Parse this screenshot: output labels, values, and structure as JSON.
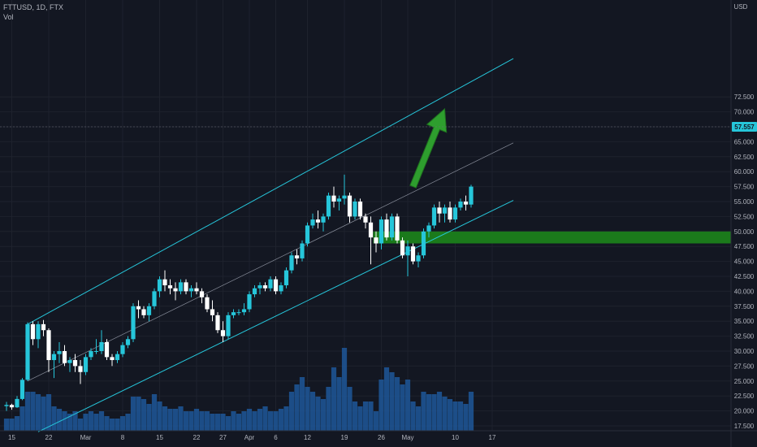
{
  "header": {
    "symbol_line": "FTTUSD, 1D, FTX",
    "volume_label": "Vol"
  },
  "price_axis": {
    "currency": "USD",
    "last_price_label": "57.557"
  },
  "colors": {
    "background": "#131722",
    "up": "#26c6da",
    "down": "#ffffff",
    "channel": "#26c6da",
    "midline": "#8a8f9c",
    "volume": "#1e5799",
    "zone": "#1b7f1b",
    "arrow": "#2e9e2e"
  },
  "chart_data": {
    "type": "candlestick",
    "title": "FTTUSD, 1D, FTX",
    "start_date": "2021-02-14",
    "y_ticks": [
      "17.500",
      "20.000",
      "22.500",
      "25.000",
      "27.500",
      "30.000",
      "32.500",
      "35.000",
      "37.500",
      "40.000",
      "42.500",
      "45.000",
      "47.500",
      "50.000",
      "52.500",
      "55.000",
      "57.500",
      "60.000",
      "62.500",
      "65.000",
      "67.500",
      "70.000",
      "72.500"
    ],
    "x_ticks": [
      {
        "date": "2021-02-15",
        "label": "15"
      },
      {
        "date": "2021-02-22",
        "label": "22"
      },
      {
        "date": "2021-03-01",
        "label": "Mar"
      },
      {
        "date": "2021-03-08",
        "label": "8"
      },
      {
        "date": "2021-03-15",
        "label": "15"
      },
      {
        "date": "2021-03-22",
        "label": "22"
      },
      {
        "date": "2021-03-27",
        "label": "27"
      },
      {
        "date": "2021-04-01",
        "label": "Apr"
      },
      {
        "date": "2021-04-06",
        "label": "6"
      },
      {
        "date": "2021-04-12",
        "label": "12"
      },
      {
        "date": "2021-04-19",
        "label": "19"
      },
      {
        "date": "2021-04-26",
        "label": "26"
      },
      {
        "date": "2021-05-01",
        "label": "May"
      },
      {
        "date": "2021-05-10",
        "label": "10"
      },
      {
        "date": "2021-05-17",
        "label": "17"
      }
    ],
    "ylim": [
      16.5,
      74
    ],
    "last_price": 57.557,
    "candles": [
      [
        20.8,
        21.5,
        20.0,
        21.0
      ],
      [
        21.0,
        21.2,
        20.2,
        20.6
      ],
      [
        20.6,
        22.5,
        20.5,
        22.0
      ],
      [
        22.0,
        25.5,
        21.8,
        25.2
      ],
      [
        25.2,
        34.8,
        25.0,
        34.5
      ],
      [
        34.5,
        35.0,
        31.0,
        32.0
      ],
      [
        32.0,
        35.0,
        30.5,
        34.5
      ],
      [
        34.5,
        35.2,
        32.5,
        33.5
      ],
      [
        33.5,
        33.8,
        26.5,
        28.5
      ],
      [
        28.5,
        30.0,
        25.5,
        29.5
      ],
      [
        29.5,
        31.5,
        28.0,
        30.0
      ],
      [
        30.0,
        31.0,
        27.5,
        28.0
      ],
      [
        28.0,
        29.0,
        26.5,
        28.5
      ],
      [
        28.5,
        29.5,
        26.5,
        27.5
      ],
      [
        27.5,
        28.5,
        24.5,
        26.5
      ],
      [
        26.5,
        29.5,
        26.0,
        29.0
      ],
      [
        29.0,
        30.5,
        28.5,
        30.0
      ],
      [
        30.0,
        32.0,
        29.5,
        30.0
      ],
      [
        30.0,
        33.5,
        29.5,
        31.5
      ],
      [
        31.5,
        32.0,
        28.5,
        29.0
      ],
      [
        29.0,
        29.5,
        27.5,
        28.5
      ],
      [
        28.5,
        30.0,
        28.0,
        29.5
      ],
      [
        29.5,
        31.5,
        29.0,
        31.0
      ],
      [
        31.0,
        32.5,
        30.5,
        32.0
      ],
      [
        32.0,
        38.0,
        31.5,
        37.5
      ],
      [
        37.5,
        38.5,
        35.5,
        37.0
      ],
      [
        37.0,
        37.5,
        35.5,
        36.0
      ],
      [
        36.0,
        38.0,
        35.0,
        37.5
      ],
      [
        37.5,
        40.5,
        37.0,
        40.0
      ],
      [
        40.0,
        42.5,
        39.0,
        42.0
      ],
      [
        42.0,
        43.5,
        40.0,
        41.0
      ],
      [
        41.0,
        42.0,
        39.5,
        40.5
      ],
      [
        40.5,
        41.5,
        38.5,
        40.0
      ],
      [
        40.0,
        42.0,
        39.5,
        41.5
      ],
      [
        41.5,
        42.0,
        39.5,
        40.0
      ],
      [
        40.0,
        41.0,
        39.0,
        40.5
      ],
      [
        40.5,
        41.5,
        39.5,
        40.0
      ],
      [
        40.0,
        40.5,
        38.0,
        39.0
      ],
      [
        39.0,
        39.5,
        36.5,
        37.0
      ],
      [
        37.0,
        38.5,
        35.0,
        36.0
      ],
      [
        36.0,
        36.5,
        33.0,
        33.5
      ],
      [
        33.5,
        35.0,
        31.5,
        32.5
      ],
      [
        32.5,
        36.5,
        32.0,
        36.0
      ],
      [
        36.0,
        37.0,
        35.5,
        36.5
      ],
      [
        36.5,
        37.0,
        36.0,
        36.5
      ],
      [
        36.5,
        38.0,
        36.0,
        37.0
      ],
      [
        37.0,
        40.0,
        36.5,
        39.5
      ],
      [
        39.5,
        41.0,
        39.0,
        40.5
      ],
      [
        40.5,
        41.5,
        39.5,
        41.0
      ],
      [
        41.0,
        41.5,
        40.0,
        40.5
      ],
      [
        40.5,
        42.5,
        40.0,
        42.0
      ],
      [
        42.0,
        42.5,
        39.5,
        40.0
      ],
      [
        40.0,
        41.5,
        39.5,
        41.0
      ],
      [
        41.0,
        44.0,
        40.5,
        43.5
      ],
      [
        43.5,
        46.5,
        43.0,
        46.0
      ],
      [
        46.0,
        47.0,
        44.5,
        45.5
      ],
      [
        45.5,
        48.5,
        45.0,
        48.0
      ],
      [
        48.0,
        51.5,
        47.5,
        51.0
      ],
      [
        51.0,
        53.0,
        50.5,
        52.0
      ],
      [
        52.0,
        53.5,
        50.5,
        51.5
      ],
      [
        51.5,
        53.0,
        50.0,
        52.5
      ],
      [
        52.5,
        56.5,
        52.0,
        56.0
      ],
      [
        56.0,
        57.5,
        54.0,
        55.0
      ],
      [
        55.0,
        56.0,
        53.5,
        55.5
      ],
      [
        55.5,
        59.5,
        54.5,
        56.0
      ],
      [
        56.0,
        56.5,
        51.5,
        52.5
      ],
      [
        52.5,
        55.5,
        52.0,
        55.0
      ],
      [
        55.0,
        55.5,
        52.0,
        52.5
      ],
      [
        52.5,
        53.0,
        50.5,
        51.5
      ],
      [
        51.5,
        52.5,
        44.5,
        49.0
      ],
      [
        49.0,
        50.0,
        46.5,
        48.0
      ],
      [
        48.0,
        52.5,
        47.0,
        52.0
      ],
      [
        52.0,
        53.0,
        48.5,
        49.0
      ],
      [
        49.0,
        53.0,
        48.5,
        52.5
      ],
      [
        52.5,
        53.0,
        48.0,
        48.5
      ],
      [
        48.5,
        49.0,
        45.5,
        46.0
      ],
      [
        46.0,
        48.5,
        42.5,
        47.5
      ],
      [
        47.5,
        48.0,
        44.5,
        45.0
      ],
      [
        45.0,
        46.5,
        44.0,
        46.0
      ],
      [
        46.0,
        50.5,
        45.5,
        50.0
      ],
      [
        50.0,
        51.5,
        49.0,
        51.0
      ],
      [
        51.0,
        54.5,
        50.5,
        54.0
      ],
      [
        54.0,
        55.0,
        51.5,
        53.0
      ],
      [
        53.0,
        54.5,
        51.5,
        54.0
      ],
      [
        54.0,
        55.0,
        51.5,
        52.0
      ],
      [
        52.0,
        54.5,
        51.5,
        54.0
      ],
      [
        54.0,
        55.5,
        53.5,
        55.0
      ],
      [
        55.0,
        56.0,
        53.5,
        54.5
      ],
      [
        54.5,
        57.8,
        54.0,
        57.5
      ]
    ],
    "volumes": [
      5,
      5,
      6,
      10,
      16,
      16,
      15,
      14,
      15,
      10,
      9,
      8,
      7,
      8,
      5,
      7,
      8,
      7,
      8,
      6,
      5,
      5,
      6,
      7,
      14,
      14,
      13,
      11,
      15,
      12,
      10,
      9,
      9,
      10,
      8,
      8,
      9,
      8,
      8,
      7,
      7,
      7,
      6,
      8,
      7,
      8,
      9,
      8,
      9,
      10,
      8,
      8,
      9,
      10,
      16,
      19,
      22,
      18,
      16,
      14,
      13,
      18,
      26,
      22,
      34,
      18,
      12,
      10,
      12,
      12,
      8,
      21,
      26,
      24,
      22,
      19,
      21,
      12,
      10,
      16,
      15,
      15,
      16,
      14,
      13,
      12,
      12,
      11,
      16
    ],
    "channel": {
      "upper": {
        "from": [
          "2021-02-18",
          34.5
        ],
        "to": [
          "2021-05-21",
          78.9
        ]
      },
      "middle": {
        "from": [
          "2021-02-18",
          25.0
        ],
        "to": [
          "2021-05-21",
          64.8
        ]
      },
      "lower": {
        "from": [
          "2021-02-20",
          16.5
        ],
        "to": [
          "2021-05-21",
          55.2
        ]
      }
    },
    "support_zone": {
      "from_date": "2021-04-26",
      "y_min": 48.0,
      "y_max": 50.0
    },
    "arrow": {
      "from": [
        "2021-05-02",
        57.5
      ],
      "to": [
        "2021-05-08",
        70.5
      ]
    }
  }
}
